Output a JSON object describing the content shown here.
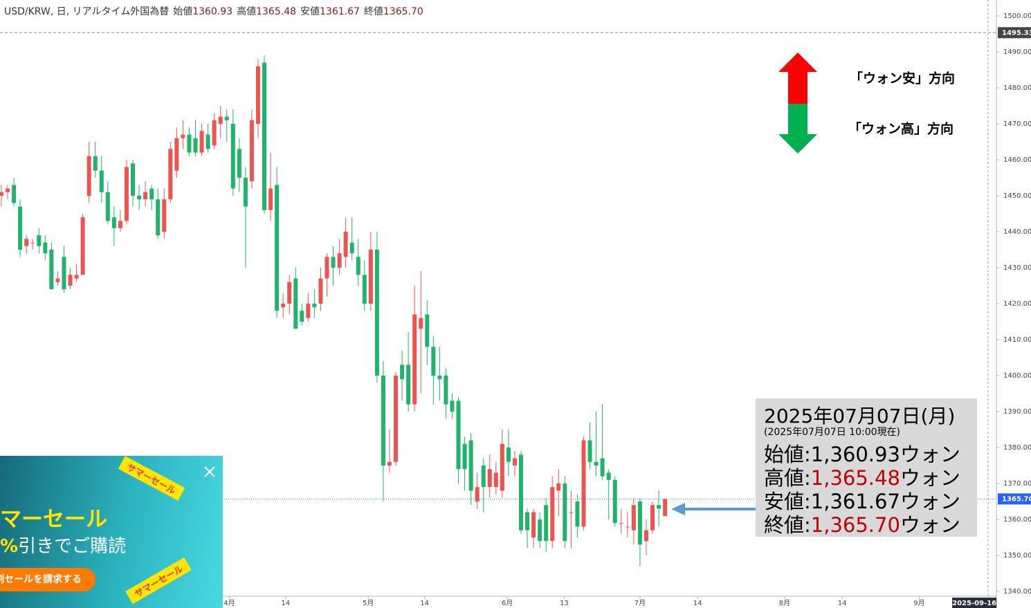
{
  "chart_data": {
    "type": "candlestick",
    "header": {
      "symbol": "USD/KRW, 日, リアルタイム外国為替",
      "fields": [
        {
          "label": "始値",
          "value": "1360.93"
        },
        {
          "label": "高値",
          "value": "1365.48"
        },
        {
          "label": "安値",
          "value": "1361.67"
        },
        {
          "label": "終値",
          "value": "1365.70"
        }
      ]
    },
    "up_color": "#ef5350",
    "down_color": "#1fb36b",
    "ohlc": [
      [
        1450,
        1453,
        1447,
        1451
      ],
      [
        1451,
        1453,
        1449,
        1452
      ],
      [
        1453,
        1455,
        1447,
        1448
      ],
      [
        1447,
        1449,
        1433,
        1435
      ],
      [
        1436,
        1439,
        1434,
        1438
      ],
      [
        1437,
        1438,
        1435,
        1437
      ],
      [
        1439,
        1441,
        1434,
        1436
      ],
      [
        1437,
        1439,
        1432,
        1434
      ],
      [
        1435,
        1437,
        1424,
        1424
      ],
      [
        1426,
        1429,
        1425,
        1427
      ],
      [
        1433,
        1436,
        1423,
        1424
      ],
      [
        1425,
        1430,
        1424,
        1428
      ],
      [
        1427,
        1431,
        1426,
        1428
      ],
      [
        1428,
        1445,
        1428,
        1444
      ],
      [
        1450,
        1465,
        1448,
        1461
      ],
      [
        1461,
        1465,
        1455,
        1457
      ],
      [
        1457,
        1461,
        1448,
        1451
      ],
      [
        1451,
        1454,
        1442,
        1443
      ],
      [
        1444,
        1447,
        1436,
        1441
      ],
      [
        1441,
        1446,
        1440,
        1443
      ],
      [
        1443,
        1460,
        1442,
        1458
      ],
      [
        1459,
        1460,
        1447,
        1450
      ],
      [
        1450,
        1453,
        1446,
        1449
      ],
      [
        1449,
        1454,
        1447,
        1451
      ],
      [
        1452,
        1453,
        1446,
        1449
      ],
      [
        1449,
        1452,
        1438,
        1439
      ],
      [
        1440,
        1452,
        1438,
        1449
      ],
      [
        1449,
        1465,
        1448,
        1463
      ],
      [
        1457,
        1469,
        1455,
        1466
      ],
      [
        1466,
        1471,
        1463,
        1467
      ],
      [
        1467,
        1469,
        1461,
        1462
      ],
      [
        1466,
        1471,
        1461,
        1462
      ],
      [
        1462,
        1470,
        1461,
        1468
      ],
      [
        1467,
        1470,
        1462,
        1463
      ],
      [
        1464,
        1473,
        1463,
        1471
      ],
      [
        1470,
        1475,
        1466,
        1472
      ],
      [
        1472,
        1474,
        1465,
        1471
      ],
      [
        1470,
        1474,
        1450,
        1452
      ],
      [
        1463,
        1466,
        1451,
        1455
      ],
      [
        1455,
        1458,
        1430,
        1447
      ],
      [
        1454,
        1474,
        1452,
        1471
      ],
      [
        1470,
        1488,
        1466,
        1486
      ],
      [
        1487,
        1489,
        1445,
        1446
      ],
      [
        1446,
        1462,
        1443,
        1452
      ],
      [
        1453,
        1458,
        1416,
        1418
      ],
      [
        1419,
        1423,
        1416,
        1420
      ],
      [
        1420,
        1428,
        1417,
        1426
      ],
      [
        1427,
        1430,
        1413,
        1413
      ],
      [
        1418,
        1420,
        1414,
        1415
      ],
      [
        1416,
        1423,
        1415,
        1420
      ],
      [
        1420,
        1424,
        1416,
        1419
      ],
      [
        1420,
        1430,
        1418,
        1427
      ],
      [
        1427,
        1434,
        1422,
        1433
      ],
      [
        1433,
        1436,
        1425,
        1430
      ],
      [
        1430,
        1438,
        1428,
        1434
      ],
      [
        1433,
        1444,
        1430,
        1440
      ],
      [
        1437,
        1444,
        1432,
        1434
      ],
      [
        1433,
        1438,
        1425,
        1428
      ],
      [
        1428,
        1432,
        1418,
        1420
      ],
      [
        1420,
        1440,
        1418,
        1435
      ],
      [
        1435,
        1440,
        1398,
        1400
      ],
      [
        1400,
        1404,
        1365,
        1375
      ],
      [
        1375,
        1385,
        1373,
        1376
      ],
      [
        1376,
        1401,
        1375,
        1400
      ],
      [
        1403,
        1407,
        1393,
        1399
      ],
      [
        1403,
        1412,
        1390,
        1392
      ],
      [
        1392,
        1425,
        1390,
        1417
      ],
      [
        1413,
        1429,
        1395,
        1416
      ],
      [
        1417,
        1421,
        1403,
        1408
      ],
      [
        1408,
        1411,
        1392,
        1400
      ],
      [
        1400,
        1408,
        1393,
        1399
      ],
      [
        1400,
        1402,
        1388,
        1392
      ],
      [
        1393,
        1395,
        1388,
        1390
      ],
      [
        1393,
        1394,
        1370,
        1374
      ],
      [
        1381,
        1383,
        1368,
        1374
      ],
      [
        1382,
        1384,
        1364,
        1368
      ],
      [
        1365,
        1373,
        1363,
        1369
      ],
      [
        1375,
        1377,
        1362,
        1369
      ],
      [
        1369,
        1378,
        1366,
        1374
      ],
      [
        1369,
        1376,
        1367,
        1373
      ],
      [
        1368,
        1385,
        1366,
        1381
      ],
      [
        1380,
        1385,
        1372,
        1376
      ],
      [
        1375,
        1379,
        1372,
        1377
      ],
      [
        1378,
        1379,
        1356,
        1357
      ],
      [
        1362,
        1363,
        1352,
        1357
      ],
      [
        1355,
        1363,
        1352,
        1362
      ],
      [
        1360,
        1362,
        1352,
        1354
      ],
      [
        1364,
        1366,
        1351,
        1354
      ],
      [
        1354,
        1372,
        1352,
        1369
      ],
      [
        1368,
        1374,
        1361,
        1370
      ],
      [
        1370,
        1372,
        1352,
        1354
      ],
      [
        1362,
        1368,
        1352,
        1362
      ],
      [
        1365,
        1367,
        1355,
        1358
      ],
      [
        1358,
        1383,
        1357,
        1382
      ],
      [
        1382,
        1387,
        1374,
        1376
      ],
      [
        1376,
        1390,
        1372,
        1375
      ],
      [
        1377,
        1392,
        1371,
        1372
      ],
      [
        1373,
        1374,
        1360,
        1371
      ],
      [
        1371,
        1372,
        1358,
        1359
      ],
      [
        1359,
        1363,
        1356,
        1359
      ],
      [
        1358,
        1362,
        1355,
        1358
      ],
      [
        1357,
        1366,
        1353,
        1364
      ],
      [
        1365,
        1366,
        1347,
        1353
      ],
      [
        1354,
        1360,
        1350,
        1357
      ],
      [
        1357,
        1365,
        1356,
        1364
      ],
      [
        1364,
        1368,
        1358,
        1363
      ],
      [
        1360.93,
        1365.48,
        1361.67,
        1365.7
      ]
    ],
    "xlim": [
      -0.22,
      157.6
    ],
    "xticks": [
      {
        "value": 36.4,
        "label": "4月"
      },
      {
        "value": 45.4,
        "label": "14"
      },
      {
        "value": 58.6,
        "label": "5月"
      },
      {
        "value": 67.6,
        "label": "14"
      },
      {
        "value": 80.8,
        "label": "6月"
      },
      {
        "value": 89.9,
        "label": "13"
      },
      {
        "value": 102.0,
        "label": "7月"
      },
      {
        "value": 111.2,
        "label": "14"
      },
      {
        "value": 125.1,
        "label": "8月"
      },
      {
        "value": 134.3,
        "label": "14"
      },
      {
        "value": 146.6,
        "label": "9月"
      }
    ],
    "date_marker": {
      "value": 155.4,
      "label": "2025-09-16"
    },
    "ylim": [
      1338.65,
      1504.42
    ],
    "yticks": [
      {
        "value": 1500,
        "label": "1500.00"
      },
      {
        "value": 1490,
        "label": "1490.00"
      },
      {
        "value": 1480,
        "label": "1480.00"
      },
      {
        "value": 1470,
        "label": "1470.00"
      },
      {
        "value": 1460,
        "label": "1460.00"
      },
      {
        "value": 1450,
        "label": "1450.00"
      },
      {
        "value": 1440,
        "label": "1440.00"
      },
      {
        "value": 1430,
        "label": "1430.00"
      },
      {
        "value": 1420,
        "label": "1420.00"
      },
      {
        "value": 1410,
        "label": "1410.00"
      },
      {
        "value": 1400,
        "label": "1400.00"
      },
      {
        "value": 1390,
        "label": "1390.00"
      },
      {
        "value": 1380,
        "label": "1380.00"
      },
      {
        "value": 1370,
        "label": "1370.00"
      },
      {
        "value": 1360,
        "label": "1360.00"
      },
      {
        "value": 1350,
        "label": "1350.00"
      },
      {
        "value": 1340,
        "label": "1340.00"
      }
    ],
    "price_lines": [
      {
        "value": 1495.33,
        "label": "1495.33",
        "color": "#888888",
        "box": "#444444"
      },
      {
        "value": 1365.7,
        "label": "1365.70",
        "color": "#2962ff",
        "box": "#2962ff"
      }
    ],
    "annotations": {
      "up": "「ウォン安」方向",
      "down": "「ウォン高」方向"
    },
    "info": {
      "date": "2025年07月07日(月)",
      "note": "(2025年07月07日 10:00現在)",
      "rows": [
        {
          "label": "始値:",
          "value": "1,360.93",
          "unit": "ウォン",
          "color": "#000000"
        },
        {
          "label": "高値:",
          "value": "1,365.48",
          "unit": "ウォン",
          "color": "#c00000"
        },
        {
          "label": "安値:",
          "value": "1,361.67",
          "unit": "ウォン",
          "color": "#000000"
        },
        {
          "label": "終値:",
          "value": "1,365.70",
          "unit": "ウォン",
          "color": "#c00000"
        }
      ]
    }
  },
  "banner": {
    "ribbon": "サマーセール",
    "headline": "マーセール",
    "percent": "%",
    "sub": "引きでご購読",
    "button": "割セールを請求する"
  }
}
